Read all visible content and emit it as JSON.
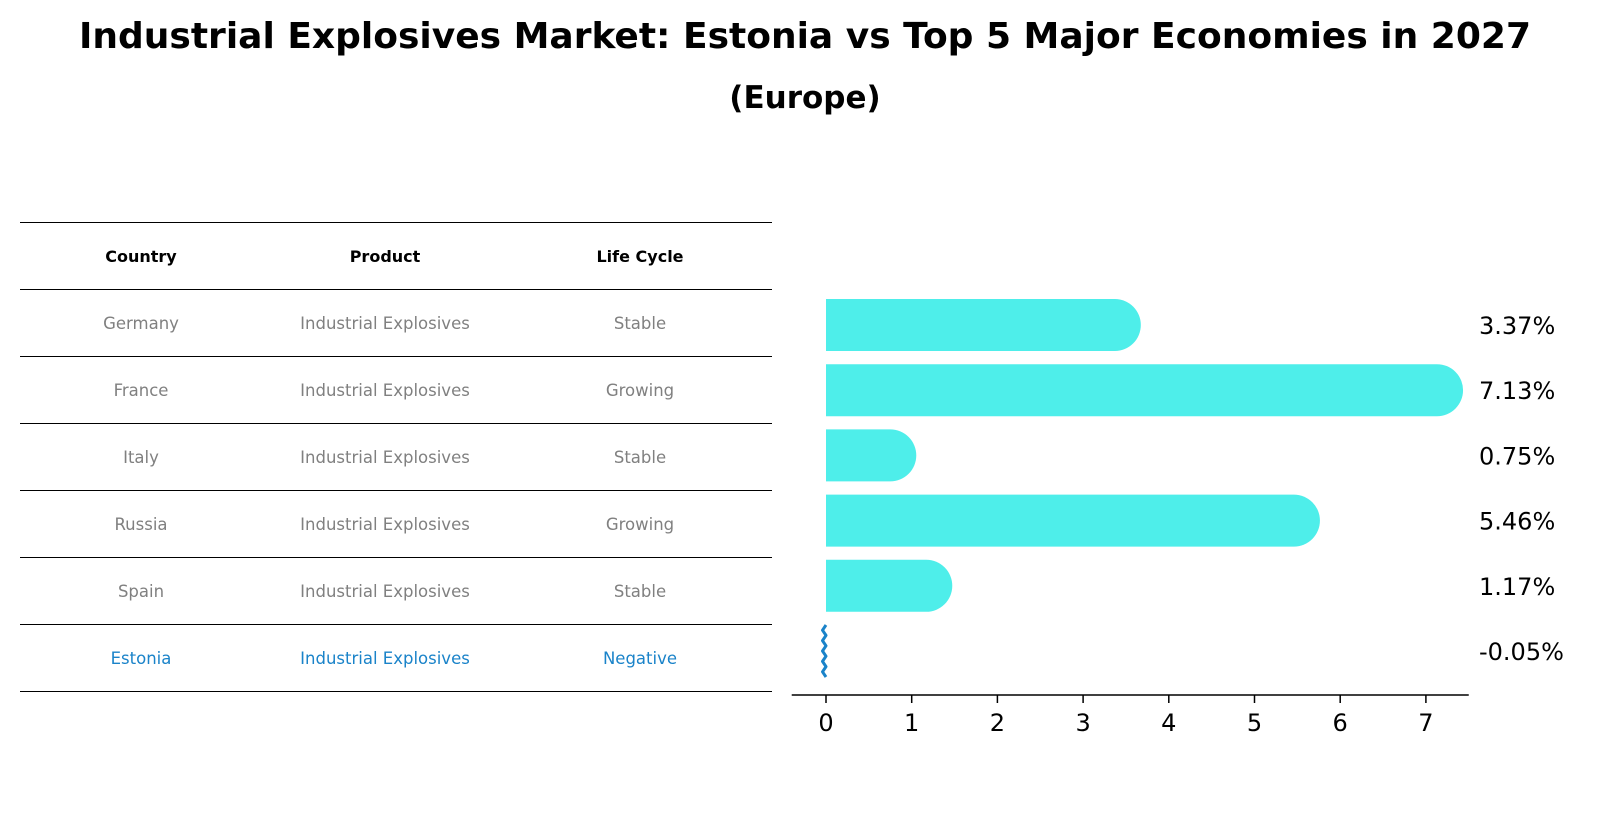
{
  "title": "Industrial Explosives Market: Estonia vs Top 5 Major Economies in 2027",
  "subtitle": "(Europe)",
  "table": {
    "headers": [
      "Country",
      "Product",
      "Life Cycle"
    ],
    "rows": [
      {
        "country": "Germany",
        "product": "Industrial Explosives",
        "life_cycle": "Stable"
      },
      {
        "country": "France",
        "product": "Industrial Explosives",
        "life_cycle": "Growing"
      },
      {
        "country": "Italy",
        "product": "Industrial Explosives",
        "life_cycle": "Stable"
      },
      {
        "country": "Russia",
        "product": "Industrial Explosives",
        "life_cycle": "Growing"
      },
      {
        "country": "Spain",
        "product": "Industrial Explosives",
        "life_cycle": "Stable"
      },
      {
        "country": "Estonia",
        "product": "Industrial Explosives",
        "life_cycle": "Negative"
      }
    ],
    "highlight_row": "Estonia",
    "highlight_color": "#1a83c9"
  },
  "chart_data": {
    "type": "bar",
    "orientation": "horizontal",
    "categories": [
      "Germany",
      "France",
      "Italy",
      "Russia",
      "Spain",
      "Estonia"
    ],
    "values": [
      3.37,
      7.13,
      0.75,
      5.46,
      1.17,
      -0.05
    ],
    "data_labels": [
      "3.37%",
      "7.13%",
      "0.75%",
      "5.46%",
      "1.17%",
      "-0.05%"
    ],
    "xlim": [
      -0.4,
      7.5
    ],
    "xticks": [
      0,
      1,
      2,
      3,
      4,
      5,
      6,
      7
    ],
    "bar_color": "#4eeeea",
    "negative_color": "#1a83c9",
    "grid": false
  }
}
